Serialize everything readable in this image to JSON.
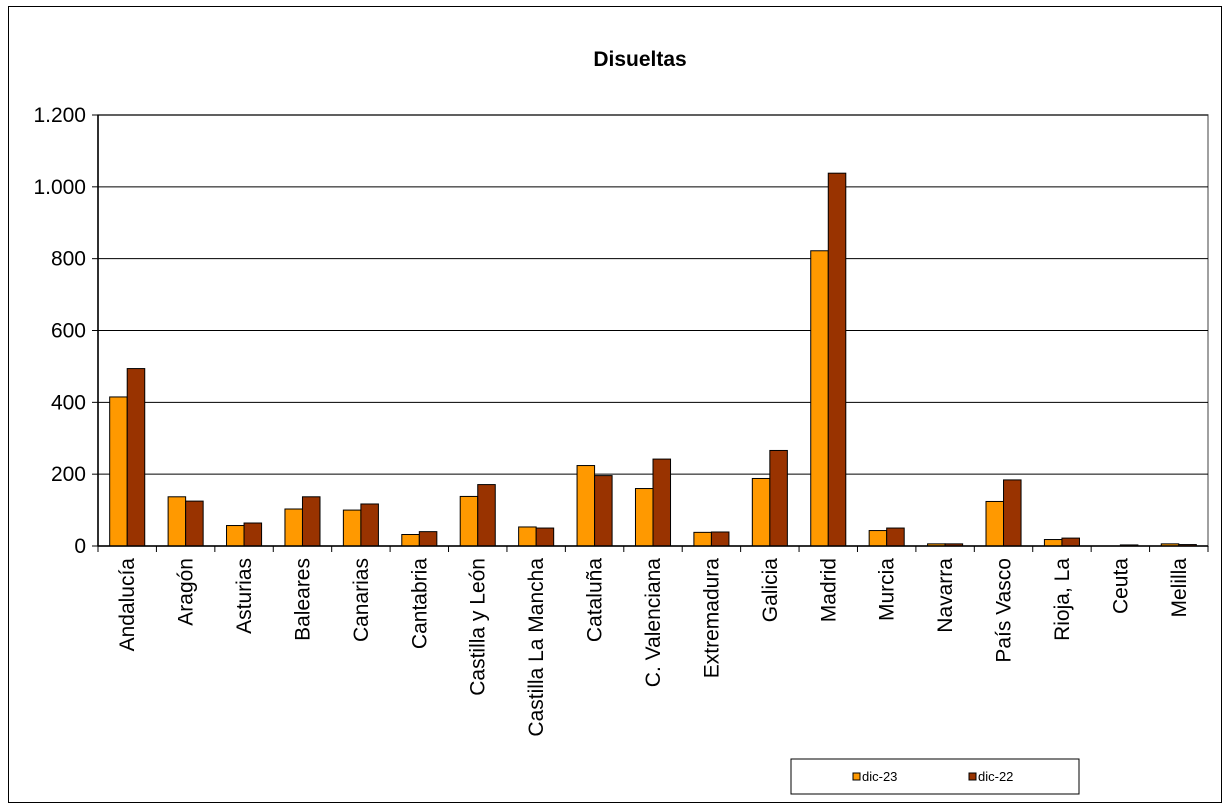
{
  "chart_data": {
    "type": "bar",
    "title": "Disueltas",
    "xlabel": "",
    "ylabel": "",
    "ylim": [
      0,
      1200
    ],
    "yticks": [
      0,
      200,
      400,
      600,
      800,
      1000,
      1200
    ],
    "ytick_labels": [
      "0",
      "200",
      "400",
      "600",
      "800",
      "1.000",
      "1.200"
    ],
    "grid": true,
    "legend_position": "bottom-right",
    "categories": [
      "Andalucía",
      "Aragón",
      "Asturias",
      "Baleares",
      "Canarias",
      "Cantabria",
      "Castilla y León",
      "Castilla  La Mancha",
      "Cataluña",
      "C. Valenciana",
      "Extremadura",
      "Galicia",
      "Madrid",
      "Murcia",
      "Navarra",
      "País Vasco",
      "Rioja, La",
      "Ceuta",
      "Melilla"
    ],
    "series": [
      {
        "name": "dic-23",
        "color": "#FF9900",
        "values": [
          415,
          137,
          57,
          103,
          100,
          32,
          138,
          53,
          224,
          160,
          38,
          188,
          822,
          43,
          6,
          124,
          18,
          0,
          6
        ]
      },
      {
        "name": "dic-22",
        "color": "#993300",
        "values": [
          494,
          125,
          64,
          137,
          117,
          40,
          171,
          50,
          196,
          242,
          39,
          266,
          1038,
          50,
          6,
          184,
          22,
          3,
          4
        ]
      }
    ]
  }
}
